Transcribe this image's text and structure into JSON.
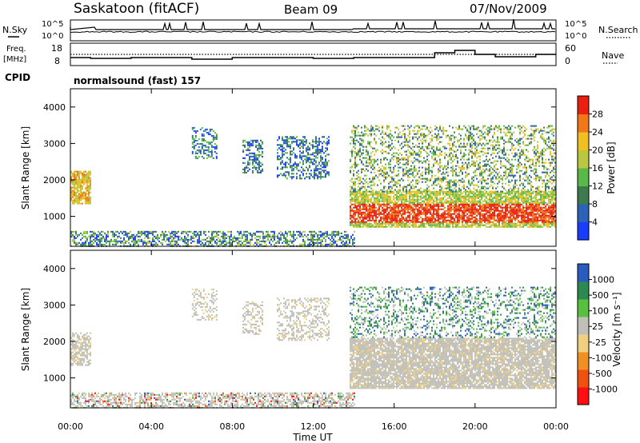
{
  "header": {
    "station": "Saskatoon (fitACF)",
    "beam": "Beam 09",
    "date": "07/Nov/2009"
  },
  "status_panel": {
    "nsky_label": "N.Sky",
    "nsearch_label": "N.Search",
    "freq_label_line1": "Freq.",
    "freq_label_line2": "[MHz]",
    "nave_label": "Nave",
    "cpid_label": "CPID",
    "cpid_text": "normalsound (fast) 157",
    "noise_ticks": [
      "10^5",
      "10^0"
    ],
    "freq_ticks": [
      "18",
      "8"
    ],
    "nave_ticks": [
      "60",
      "0"
    ]
  },
  "chart_data": [
    {
      "type": "heatmap",
      "name": "power",
      "ylabel": "Slant Range [km]",
      "xlabel": "",
      "yticks": [
        "4000",
        "3000",
        "2000",
        "1000"
      ],
      "ylim": [
        180,
        4500
      ],
      "x_range_hours": [
        0,
        24
      ],
      "colorbar": {
        "label": "Power [dB]",
        "ticks": [
          "28",
          "24",
          "20",
          "16",
          "12",
          "8",
          "4"
        ],
        "range": [
          0,
          32
        ],
        "colors": [
          "#1a3cff",
          "#2c62b8",
          "#3d7a4e",
          "#58b848",
          "#b9c840",
          "#f0c020",
          "#f07818",
          "#e82010"
        ]
      },
      "regions": [
        {
          "t0": 0.0,
          "t1": 1.0,
          "r0": 1350,
          "r1": 2250,
          "level": "mid-high"
        },
        {
          "t0": 6.0,
          "t1": 7.2,
          "r0": 2600,
          "r1": 3450,
          "level": "low-mid"
        },
        {
          "t0": 8.5,
          "t1": 9.5,
          "r0": 2200,
          "r1": 3100,
          "level": "low-mid"
        },
        {
          "t0": 10.2,
          "t1": 12.8,
          "r0": 2050,
          "r1": 3200,
          "level": "low-mid"
        },
        {
          "t0": 13.8,
          "t1": 24.0,
          "r0": 700,
          "r1": 3500,
          "level": "high"
        }
      ]
    },
    {
      "type": "heatmap",
      "name": "velocity",
      "ylabel": "Slant Range [km]",
      "xlabel": "Time UT",
      "yticks": [
        "4000",
        "3000",
        "2000",
        "1000"
      ],
      "ylim": [
        180,
        4500
      ],
      "xticks": [
        "00:00",
        "04:00",
        "08:00",
        "12:00",
        "16:00",
        "20:00",
        "00:00"
      ],
      "x_range_hours": [
        0,
        24
      ],
      "colorbar": {
        "label": "Velocity [m s⁻¹]",
        "ticks": [
          "1000",
          "500",
          "100",
          "25",
          "-25",
          "-100",
          "-500",
          "-1000"
        ],
        "range": [
          -1200,
          1200
        ],
        "colors": [
          "#ff1010",
          "#f05010",
          "#f09020",
          "#f0d080",
          "#c0c0b8",
          "#58c040",
          "#2c8a50",
          "#2a5cc0"
        ]
      }
    }
  ]
}
